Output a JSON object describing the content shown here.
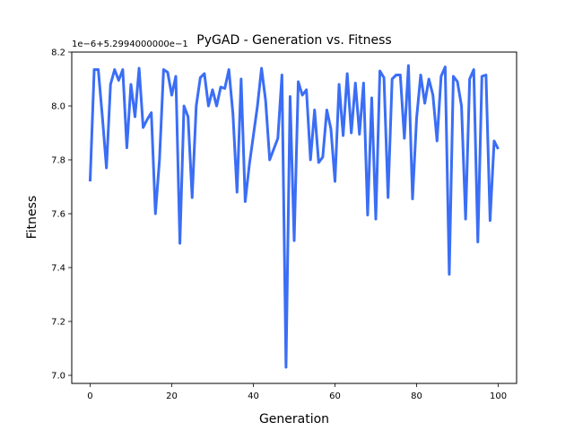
{
  "chart_data": {
    "type": "line",
    "title": "PyGAD - Generation vs. Fitness",
    "xlabel": "Generation",
    "ylabel": "Fitness",
    "y_offset_label": "1e−6+5.2994000000e−1",
    "xlim": [
      -4.5,
      104.5
    ],
    "ylim": [
      6.97,
      8.2
    ],
    "xticks": [
      0,
      20,
      40,
      60,
      80,
      100
    ],
    "yticks": [
      7.0,
      7.2,
      7.4,
      7.6,
      7.8,
      8.0,
      8.2
    ],
    "ytick_labels": [
      "7.0",
      "7.2",
      "7.4",
      "7.6",
      "7.8",
      "8.0",
      "8.2"
    ],
    "grid": false,
    "line_color": "#3b6ef5",
    "series": [
      {
        "x": [
          0,
          1,
          2,
          3,
          4,
          5,
          6,
          7,
          8,
          9,
          10,
          11,
          12,
          13,
          14,
          15,
          16,
          17,
          18,
          19,
          20,
          21,
          22,
          23,
          24,
          25,
          26,
          27,
          28,
          29,
          30,
          31,
          32,
          33,
          34,
          35,
          36,
          37,
          38,
          39,
          40,
          41,
          42,
          43,
          44,
          45,
          46,
          47,
          48,
          49,
          50,
          51,
          52,
          53,
          54,
          55,
          56,
          57,
          58,
          59,
          60,
          61,
          62,
          63,
          64,
          65,
          66,
          67,
          68,
          69,
          70,
          71,
          72,
          73,
          74,
          75,
          76,
          77,
          78,
          79,
          80,
          81,
          82,
          83,
          84,
          85,
          86,
          87,
          88,
          89,
          90,
          91,
          92,
          93,
          94,
          95,
          96,
          97,
          98,
          99,
          100
        ],
        "values": [
          7.72,
          8.135,
          8.135,
          7.96,
          7.77,
          8.08,
          8.135,
          8.095,
          8.135,
          7.845,
          8.08,
          7.96,
          8.14,
          7.92,
          7.95,
          7.975,
          7.6,
          7.8,
          8.135,
          8.125,
          8.04,
          8.11,
          7.49,
          8.0,
          7.96,
          7.66,
          8.0,
          8.105,
          8.12,
          8.0,
          8.06,
          8.0,
          8.07,
          8.065,
          8.135,
          7.97,
          7.68,
          8.1,
          7.645,
          7.78,
          7.89,
          8.0,
          8.14,
          8.02,
          7.8,
          7.84,
          7.88,
          8.115,
          7.03,
          8.035,
          7.5,
          8.09,
          8.04,
          8.06,
          7.8,
          7.985,
          7.79,
          7.81,
          7.985,
          7.915,
          7.72,
          8.08,
          7.89,
          8.12,
          7.9,
          8.085,
          7.895,
          8.085,
          7.595,
          8.03,
          7.58,
          8.13,
          8.105,
          7.66,
          8.1,
          8.115,
          8.115,
          7.88,
          8.15,
          7.655,
          7.955,
          8.115,
          8.01,
          8.1,
          8.04,
          7.87,
          8.11,
          8.145,
          7.375,
          8.11,
          8.09,
          8.0,
          7.58,
          8.1,
          8.135,
          7.495,
          8.11,
          8.115,
          7.575,
          7.87,
          7.84
        ]
      }
    ]
  }
}
